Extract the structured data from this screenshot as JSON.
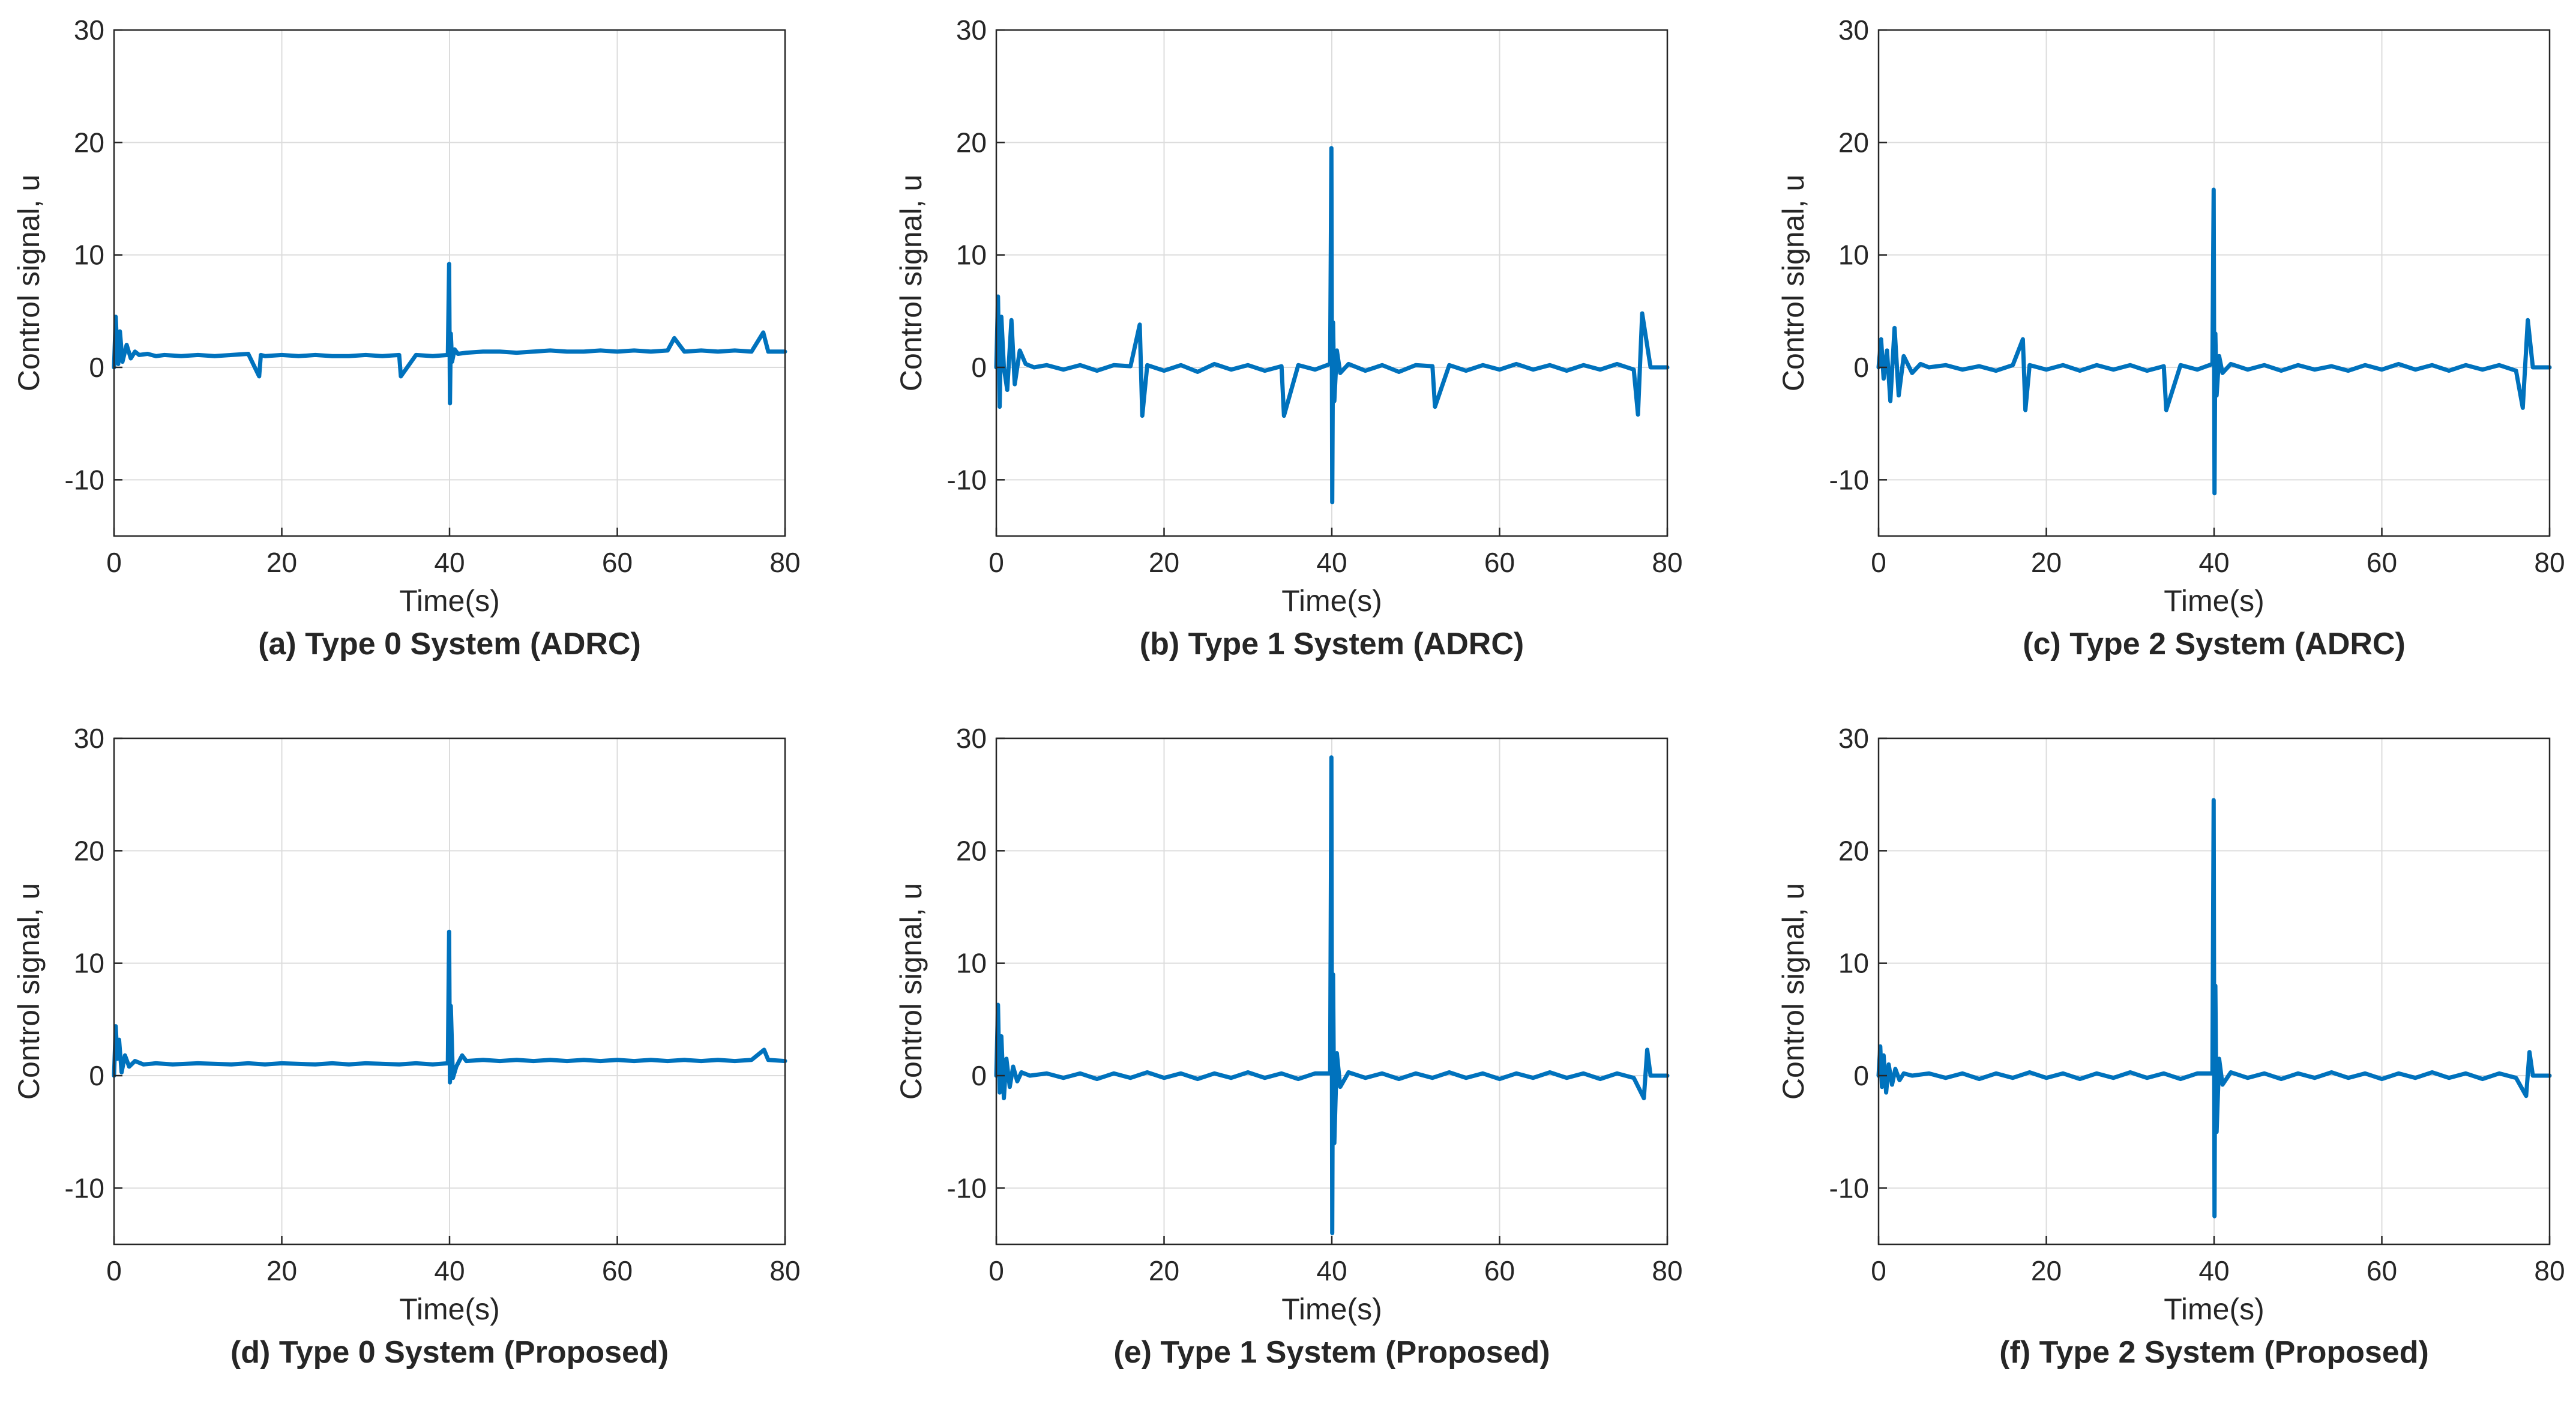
{
  "figure": {
    "line_color": "#0072BD",
    "grid_color": "#dcdcdc",
    "axis_color": "#262626"
  },
  "chart_data": [
    {
      "type": "line",
      "caption": "(a) Type 0 System (ADRC)",
      "xlabel": "Time(s)",
      "ylabel": "Control signal, u",
      "xlim": [
        0,
        80
      ],
      "ylim": [
        -15,
        30
      ],
      "xticks": [
        0,
        20,
        40,
        60,
        80
      ],
      "yticks": [
        -10,
        0,
        10,
        20,
        30
      ],
      "xtick_labels": [
        "0",
        "20",
        "40",
        "60",
        "80"
      ],
      "ytick_labels": [
        "-10",
        "0",
        "10",
        "20",
        "30"
      ],
      "grid": true,
      "series": [
        {
          "name": "u",
          "x": [
            0,
            0.2,
            0.35,
            0.5,
            0.7,
            1,
            1.5,
            2,
            2.5,
            3,
            4,
            5,
            6,
            8,
            10,
            12,
            14,
            16,
            17.3,
            17.5,
            18,
            20,
            22,
            24,
            26,
            28,
            30,
            32,
            34,
            34.2,
            36,
            38,
            39.8,
            39.95,
            40.05,
            40.15,
            40.3,
            40.6,
            41,
            42,
            44,
            46,
            48,
            50,
            52,
            54,
            56,
            58,
            60,
            62,
            64,
            66,
            66.8,
            68,
            70,
            72,
            74,
            76,
            77.4,
            78,
            80
          ],
          "y": [
            0,
            4.5,
            2,
            0.3,
            3.2,
            0.5,
            2,
            0.8,
            1.4,
            1.1,
            1.2,
            1,
            1.1,
            1,
            1.1,
            1,
            1.1,
            1.2,
            -0.8,
            1.1,
            1,
            1.1,
            1,
            1.1,
            1,
            1,
            1.1,
            1,
            1.1,
            -0.8,
            1.1,
            1,
            1.1,
            9.2,
            -3.2,
            3,
            0.5,
            1.6,
            1.2,
            1.3,
            1.4,
            1.4,
            1.3,
            1.4,
            1.5,
            1.4,
            1.4,
            1.5,
            1.4,
            1.5,
            1.4,
            1.5,
            2.6,
            1.4,
            1.5,
            1.4,
            1.5,
            1.4,
            3.1,
            1.4,
            1.4
          ]
        }
      ]
    },
    {
      "type": "line",
      "caption": "(b) Type 1 System (ADRC)",
      "xlabel": "Time(s)",
      "ylabel": "Control signal, u",
      "xlim": [
        0,
        80
      ],
      "ylim": [
        -15,
        30
      ],
      "xticks": [
        0,
        20,
        40,
        60,
        80
      ],
      "yticks": [
        -10,
        0,
        10,
        20,
        30
      ],
      "xtick_labels": [
        "0",
        "20",
        "40",
        "60",
        "80"
      ],
      "ytick_labels": [
        "-10",
        "0",
        "10",
        "20",
        "30"
      ],
      "grid": true,
      "series": [
        {
          "name": "u",
          "x": [
            0,
            0.2,
            0.4,
            0.6,
            0.9,
            1.3,
            1.8,
            2.2,
            2.8,
            3.5,
            4.5,
            6,
            8,
            10,
            12,
            14,
            16,
            17.1,
            17.4,
            18,
            20,
            22,
            24,
            26,
            28,
            30,
            32,
            34,
            34.3,
            36,
            38,
            39.8,
            39.95,
            40.05,
            40.15,
            40.3,
            40.6,
            41,
            42,
            44,
            46,
            48,
            50,
            52,
            52.3,
            54,
            56,
            58,
            60,
            62,
            64,
            66,
            68,
            70,
            72,
            74,
            76,
            76.5,
            77,
            78,
            80
          ],
          "y": [
            0,
            6.3,
            -3.5,
            4.5,
            0,
            -2,
            4.2,
            -1.5,
            1.5,
            0.3,
            0,
            0.2,
            -0.2,
            0.2,
            -0.3,
            0.2,
            0.1,
            3.8,
            -4.3,
            0.2,
            -0.3,
            0.2,
            -0.4,
            0.3,
            -0.2,
            0.2,
            -0.3,
            0.1,
            -4.3,
            0.2,
            -0.2,
            0.3,
            19.5,
            -12,
            4,
            -3,
            1.5,
            -0.5,
            0.3,
            -0.3,
            0.2,
            -0.4,
            0.2,
            0.1,
            -3.5,
            0.2,
            -0.3,
            0.2,
            -0.2,
            0.3,
            -0.2,
            0.2,
            -0.3,
            0.2,
            -0.2,
            0.3,
            -0.2,
            -4.2,
            4.8,
            0,
            0
          ]
        }
      ]
    },
    {
      "type": "line",
      "caption": "(c) Type 2 System (ADRC)",
      "xlabel": "Time(s)",
      "ylabel": "Control signal, u",
      "xlim": [
        0,
        80
      ],
      "ylim": [
        -15,
        30
      ],
      "xticks": [
        0,
        20,
        40,
        60,
        80
      ],
      "yticks": [
        -10,
        0,
        10,
        20,
        30
      ],
      "xtick_labels": [
        "0",
        "20",
        "40",
        "60",
        "80"
      ],
      "ytick_labels": [
        "-10",
        "0",
        "10",
        "20",
        "30"
      ],
      "grid": true,
      "series": [
        {
          "name": "u",
          "x": [
            0,
            0.3,
            0.6,
            1,
            1.4,
            1.9,
            2.4,
            3,
            4,
            5,
            6,
            8,
            10,
            12,
            14,
            16,
            17.2,
            17.5,
            18,
            20,
            22,
            24,
            26,
            28,
            30,
            32,
            34,
            34.3,
            36,
            38,
            39.8,
            39.95,
            40.05,
            40.15,
            40.3,
            40.6,
            41,
            42,
            44,
            46,
            48,
            50,
            52,
            54,
            56,
            58,
            60,
            62,
            64,
            66,
            68,
            70,
            72,
            74,
            76,
            76.8,
            77.4,
            78,
            80
          ],
          "y": [
            0,
            2.5,
            -1,
            1.5,
            -3,
            3.5,
            -2.5,
            1,
            -0.5,
            0.3,
            0,
            0.2,
            -0.2,
            0.1,
            -0.3,
            0.2,
            2.5,
            -3.8,
            0.2,
            -0.2,
            0.2,
            -0.3,
            0.2,
            -0.2,
            0.2,
            -0.3,
            0.1,
            -3.8,
            0.2,
            -0.2,
            0.3,
            15.8,
            -11.2,
            3,
            -2.5,
            1,
            -0.5,
            0.3,
            -0.2,
            0.2,
            -0.3,
            0.2,
            -0.2,
            0.1,
            -0.3,
            0.2,
            -0.2,
            0.3,
            -0.2,
            0.2,
            -0.3,
            0.2,
            -0.2,
            0.2,
            -0.3,
            -3.6,
            4.2,
            0,
            0
          ]
        }
      ]
    },
    {
      "type": "line",
      "caption": "(d) Type 0 System (Proposed)",
      "xlabel": "Time(s)",
      "ylabel": "Control signal, u",
      "xlim": [
        0,
        80
      ],
      "ylim": [
        -15,
        30
      ],
      "xticks": [
        0,
        20,
        40,
        60,
        80
      ],
      "yticks": [
        -10,
        0,
        10,
        20,
        30
      ],
      "xtick_labels": [
        "0",
        "20",
        "40",
        "60",
        "80"
      ],
      "ytick_labels": [
        "-10",
        "0",
        "10",
        "20",
        "30"
      ],
      "grid": true,
      "series": [
        {
          "name": "u",
          "x": [
            0,
            0.2,
            0.4,
            0.6,
            0.9,
            1.3,
            1.8,
            2.5,
            3.5,
            5,
            7,
            10,
            14,
            16,
            18,
            20,
            24,
            26,
            28,
            30,
            34,
            36,
            38,
            39.8,
            39.95,
            40.05,
            40.15,
            40.4,
            40.8,
            41.5,
            42,
            44,
            46,
            48,
            50,
            52,
            54,
            56,
            58,
            60,
            62,
            64,
            66,
            68,
            70,
            72,
            74,
            76,
            77.5,
            78,
            80
          ],
          "y": [
            0,
            4.4,
            1.5,
            3.2,
            0.3,
            1.8,
            0.8,
            1.3,
            1.0,
            1.1,
            1.0,
            1.1,
            1.0,
            1.1,
            1.0,
            1.1,
            1.0,
            1.1,
            1.0,
            1.1,
            1.0,
            1.1,
            1.0,
            1.1,
            12.8,
            -0.6,
            6.2,
            -0.2,
            0.8,
            1.8,
            1.3,
            1.4,
            1.3,
            1.4,
            1.3,
            1.4,
            1.3,
            1.4,
            1.3,
            1.4,
            1.3,
            1.4,
            1.3,
            1.4,
            1.3,
            1.4,
            1.3,
            1.4,
            2.3,
            1.4,
            1.3
          ]
        }
      ]
    },
    {
      "type": "line",
      "caption": "(e) Type 1 System (Proposed)",
      "xlabel": "Time(s)",
      "ylabel": "Control signal, u",
      "xlim": [
        0,
        80
      ],
      "ylim": [
        -15,
        30
      ],
      "xticks": [
        0,
        20,
        40,
        60,
        80
      ],
      "yticks": [
        -10,
        0,
        10,
        20,
        30
      ],
      "xtick_labels": [
        "0",
        "20",
        "40",
        "60",
        "80"
      ],
      "ytick_labels": [
        "-10",
        "0",
        "10",
        "20",
        "30"
      ],
      "grid": true,
      "series": [
        {
          "name": "u",
          "x": [
            0,
            0.2,
            0.4,
            0.6,
            0.9,
            1.2,
            1.6,
            2,
            2.5,
            3,
            4,
            6,
            8,
            10,
            12,
            14,
            16,
            18,
            20,
            22,
            24,
            26,
            28,
            30,
            32,
            34,
            36,
            38,
            39.8,
            39.95,
            40.05,
            40.15,
            40.3,
            40.6,
            41,
            42,
            44,
            46,
            48,
            50,
            52,
            54,
            56,
            58,
            60,
            62,
            64,
            66,
            68,
            70,
            72,
            74,
            76,
            77.2,
            77.6,
            78,
            80
          ],
          "y": [
            0,
            6.3,
            -1.5,
            3.5,
            -2,
            1.5,
            -1,
            0.8,
            -0.5,
            0.3,
            0,
            0.2,
            -0.2,
            0.2,
            -0.3,
            0.2,
            -0.2,
            0.3,
            -0.2,
            0.2,
            -0.3,
            0.2,
            -0.2,
            0.3,
            -0.2,
            0.2,
            -0.3,
            0.2,
            0.2,
            28.3,
            -14,
            9,
            -6,
            2,
            -1,
            0.3,
            -0.2,
            0.2,
            -0.3,
            0.2,
            -0.2,
            0.3,
            -0.2,
            0.2,
            -0.3,
            0.2,
            -0.2,
            0.3,
            -0.2,
            0.2,
            -0.3,
            0.2,
            -0.2,
            -2,
            2.3,
            0,
            0
          ]
        }
      ]
    },
    {
      "type": "line",
      "caption": "(f) Type 2 System (Proposed)",
      "xlabel": "Time(s)",
      "ylabel": "Control signal, u",
      "xlim": [
        0,
        80
      ],
      "ylim": [
        -15,
        30
      ],
      "xticks": [
        0,
        20,
        40,
        60,
        80
      ],
      "yticks": [
        -10,
        0,
        10,
        20,
        30
      ],
      "xtick_labels": [
        "0",
        "20",
        "40",
        "60",
        "80"
      ],
      "ytick_labels": [
        "-10",
        "0",
        "10",
        "20",
        "30"
      ],
      "grid": true,
      "series": [
        {
          "name": "u",
          "x": [
            0,
            0.2,
            0.4,
            0.6,
            0.9,
            1.2,
            1.6,
            2,
            2.5,
            3,
            4,
            6,
            8,
            10,
            12,
            14,
            16,
            18,
            20,
            22,
            24,
            26,
            28,
            30,
            32,
            34,
            36,
            38,
            39.8,
            39.95,
            40.05,
            40.15,
            40.3,
            40.6,
            41,
            42,
            44,
            46,
            48,
            50,
            52,
            54,
            56,
            58,
            60,
            62,
            64,
            66,
            68,
            70,
            72,
            74,
            76,
            77.2,
            77.6,
            78,
            80
          ],
          "y": [
            0,
            2.6,
            -1,
            1.8,
            -1.5,
            1,
            -0.8,
            0.6,
            -0.4,
            0.2,
            0,
            0.2,
            -0.2,
            0.2,
            -0.3,
            0.2,
            -0.2,
            0.3,
            -0.2,
            0.2,
            -0.3,
            0.2,
            -0.2,
            0.3,
            -0.2,
            0.2,
            -0.3,
            0.2,
            0.2,
            24.5,
            -12.5,
            8,
            -5,
            1.5,
            -0.8,
            0.3,
            -0.2,
            0.2,
            -0.3,
            0.2,
            -0.2,
            0.3,
            -0.2,
            0.2,
            -0.3,
            0.2,
            -0.2,
            0.3,
            -0.2,
            0.2,
            -0.3,
            0.2,
            -0.2,
            -1.8,
            2.1,
            0,
            0
          ]
        }
      ]
    }
  ]
}
